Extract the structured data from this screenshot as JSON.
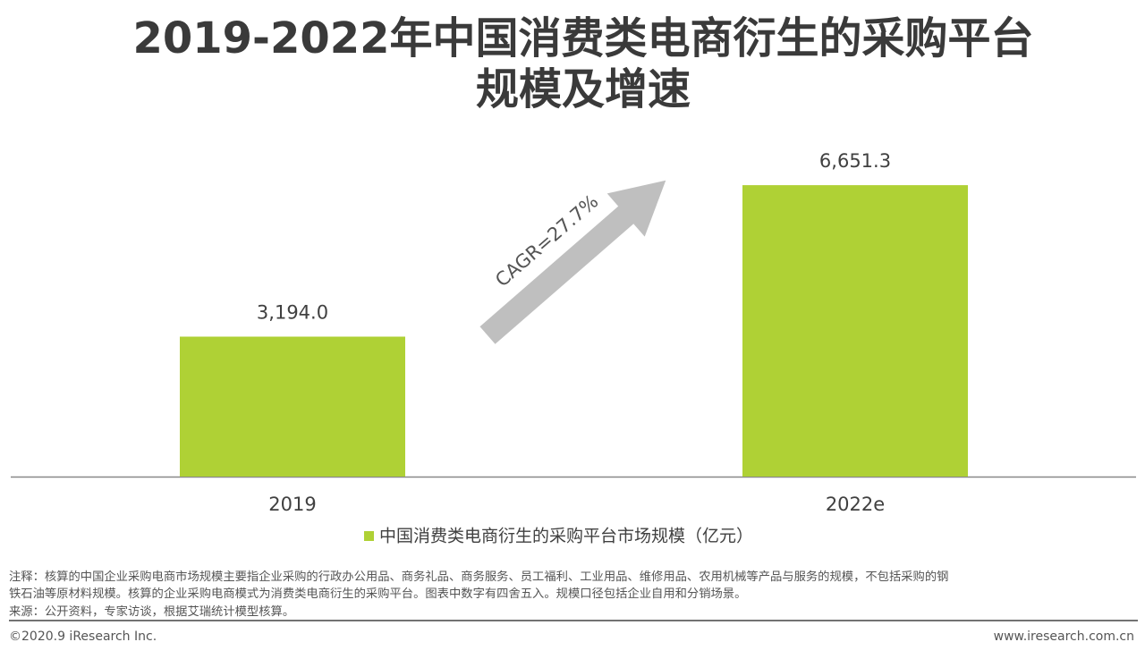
{
  "chart_data": {
    "type": "bar",
    "title": [
      "2019-2022年中国消费类电商衍生的采购平台",
      "规模及增速"
    ],
    "categories": [
      "2019",
      "2022e"
    ],
    "series": [
      {
        "name": "中国消费类电商衍生的采购平台市场规模（亿元）",
        "color": "#afd135",
        "values": [
          3194.0,
          6651.3
        ],
        "value_labels": [
          "3,194.0",
          "6,651.3"
        ]
      }
    ],
    "ylim": [
      0,
      7000
    ],
    "annotation": "CAGR=27.7%",
    "notes": [
      "注释：核算的中国企业采购电商市场规模主要指企业采购的行政办公用品、商务礼品、商务服务、员工福利、工业用品、维修用品、农用机械等产品与服务的规模，不包括采购的钢",
      "铁石油等原材料规模。核算的企业采购电商模式为消费类电商衍生的采购平台。图表中数字有四舍五入。规模口径包括企业自用和分销场景。",
      "来源：公开资料，专家访谈，根据艾瑞统计模型核算。"
    ],
    "copyright": "©2020.9 iResearch Inc.",
    "website": "www.iresearch.com.cn"
  }
}
